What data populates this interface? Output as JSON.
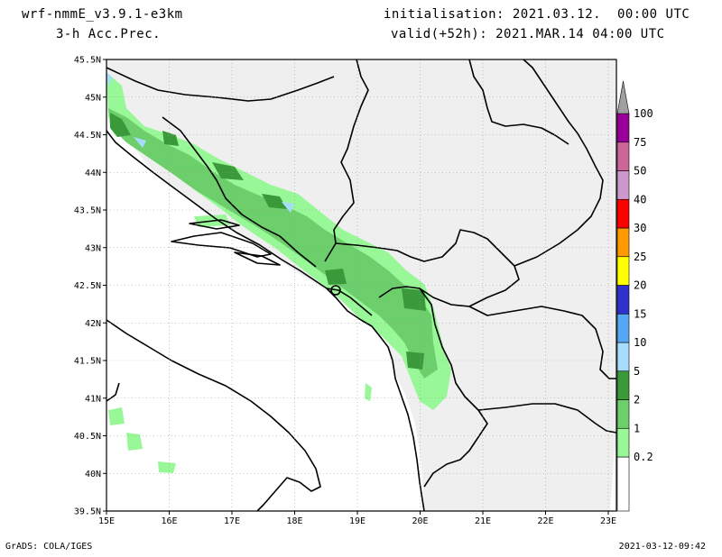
{
  "header": {
    "model": "wrf-nmmE_v3.9.1-e3km",
    "product": "3-h Acc.Prec.",
    "init_label": "initialisation:",
    "init_value": "2021.03.12.  00:00 UTC",
    "valid_label": "valid(+52h):",
    "valid_value": "2021.MAR.14 04:00 UTC"
  },
  "map": {
    "lat_ticks": [
      "45.5N",
      "45N",
      "44.5N",
      "44N",
      "43.5N",
      "43N",
      "42.5N",
      "42N",
      "41.5N",
      "41N",
      "40.5N",
      "40N",
      "39.5N"
    ],
    "lon_ticks": [
      "15E",
      "16E",
      "17E",
      "18E",
      "19E",
      "20E",
      "21E",
      "22E",
      "23E"
    ],
    "land_color": "#efefef",
    "border_color": "#000000"
  },
  "legend": {
    "levels": [
      "0.2",
      "1",
      "2",
      "5",
      "10",
      "15",
      "20",
      "25",
      "30",
      "40",
      "50",
      "75",
      "100"
    ],
    "colors": [
      "#98f898",
      "#6ccf6c",
      "#3a9a3a",
      "#a8dcfc",
      "#54a8f4",
      "#3030cc",
      "#ffff00",
      "#ff9900",
      "#ff0000",
      "#cc99cc",
      "#cc6699",
      "#990099",
      "#a0a0a0"
    ]
  },
  "footer": {
    "credit": "GrADS: COLA/IGES",
    "timestamp": "2021-03-12-09:42"
  }
}
